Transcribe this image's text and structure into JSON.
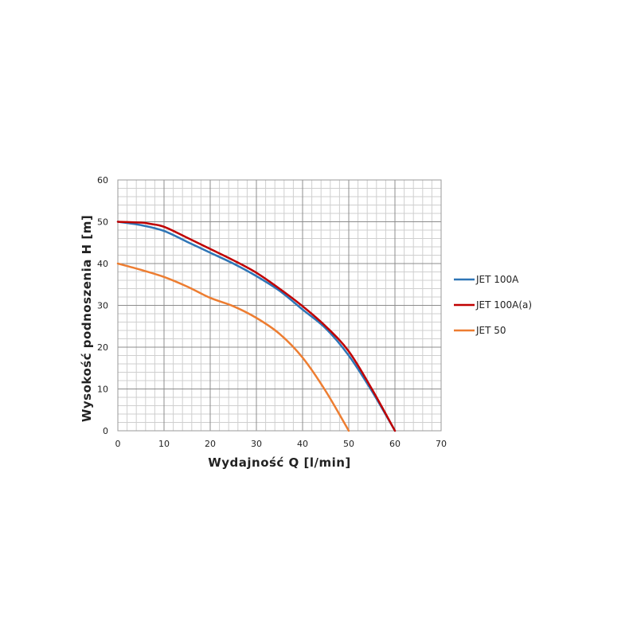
{
  "chart_data": {
    "type": "line",
    "xlabel": "Wydajność Q [l/min]",
    "ylabel": "Wysokość podnoszenia H [m]",
    "xlim": [
      0,
      70
    ],
    "ylim": [
      0,
      60
    ],
    "x_ticks": [
      "0",
      "10",
      "20",
      "30",
      "40",
      "50",
      "60",
      "70"
    ],
    "y_ticks": [
      "0",
      "10",
      "20",
      "30",
      "40",
      "50",
      "60"
    ],
    "grid": true,
    "minor_grid": true,
    "legend_position": "right",
    "series": [
      {
        "name": "JET 100A",
        "color": "#2e75b6",
        "x": [
          0,
          5,
          10,
          15,
          20,
          25,
          30,
          35,
          40,
          45,
          50,
          55,
          60
        ],
        "y": [
          50,
          49.2,
          47.8,
          45.2,
          42.6,
          40,
          37,
          33.5,
          29,
          24.5,
          18,
          9.5,
          0
        ]
      },
      {
        "name": "JET 100A(a)",
        "color": "#c00000",
        "x": [
          0,
          5,
          7,
          10,
          15,
          20,
          25,
          30,
          35,
          40,
          45,
          50,
          55,
          60
        ],
        "y": [
          50,
          49.8,
          49.5,
          48.8,
          46.2,
          43.5,
          40.8,
          37.8,
          34,
          29.8,
          25,
          19,
          10,
          0
        ]
      },
      {
        "name": "JET 50",
        "color": "#ed7d31",
        "x": [
          0,
          5,
          10,
          15,
          20,
          25,
          30,
          35,
          40,
          45,
          50
        ],
        "y": [
          40,
          38.5,
          36.8,
          34.5,
          31.8,
          29.8,
          27,
          23.2,
          17.5,
          9.5,
          0
        ]
      }
    ]
  }
}
